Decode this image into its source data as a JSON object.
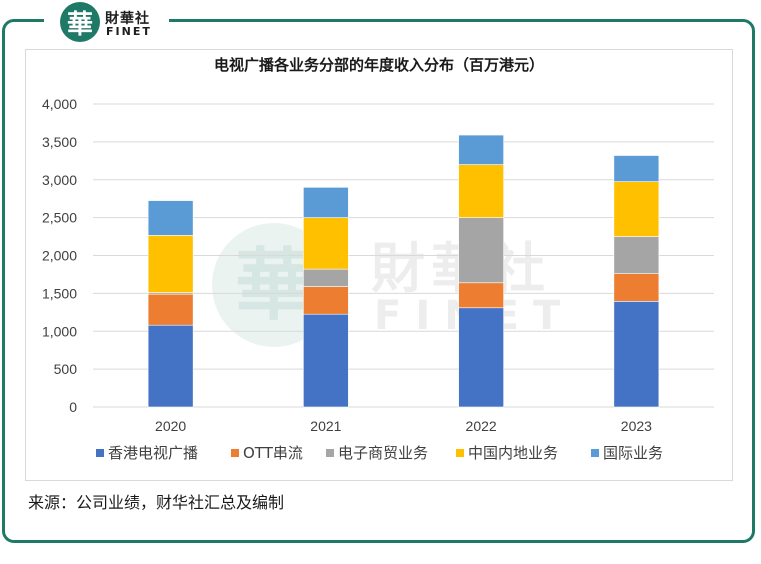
{
  "brand": {
    "mark": "華",
    "name_cn": "財華社",
    "name_en": "FINET"
  },
  "watermark": {
    "mark": "華",
    "name_cn": "財華社",
    "name_en": "FINET"
  },
  "source_note": "来源：公司业绩，财华社汇总及编制",
  "colors": {
    "frame": "#1e7a66",
    "grid": "#d9d9d9",
    "series": [
      "#4472c4",
      "#ed7d31",
      "#a5a5a5",
      "#ffc000",
      "#5b9bd5"
    ]
  },
  "chart_data": {
    "type": "bar",
    "stacked": true,
    "title": "电视广播各业务分部的年度收入分布（百万港元）",
    "xlabel": "",
    "ylabel": "",
    "categories": [
      "2020",
      "2021",
      "2022",
      "2023"
    ],
    "series": [
      {
        "name": "香港电视广播",
        "values": [
          1080,
          1225,
          1310,
          1395
        ]
      },
      {
        "name": "OTT串流",
        "values": [
          410,
          365,
          330,
          365
        ]
      },
      {
        "name": "电子商贸业务",
        "values": [
          20,
          230,
          860,
          490
        ]
      },
      {
        "name": "中国内地业务",
        "values": [
          755,
          680,
          700,
          725
        ]
      },
      {
        "name": "国际业务",
        "values": [
          460,
          400,
          390,
          345
        ]
      }
    ],
    "ylim": [
      0,
      4000
    ],
    "yticks": [
      0,
      500,
      1000,
      1500,
      2000,
      2500,
      3000,
      3500,
      4000
    ],
    "ytick_labels": [
      "0",
      "500",
      "1,000",
      "1,500",
      "2,000",
      "2,500",
      "3,000",
      "3,500",
      "4,000"
    ],
    "grid": true,
    "legend_position": "bottom"
  }
}
